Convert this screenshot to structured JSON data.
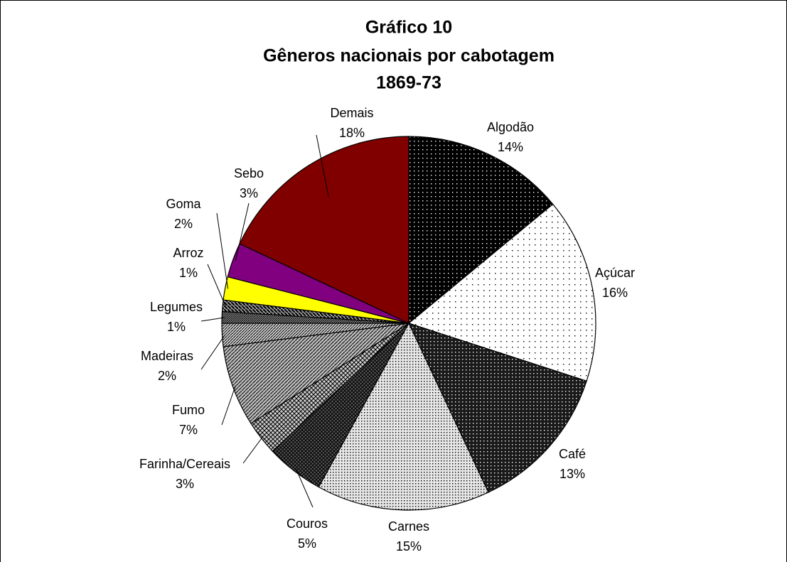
{
  "chart_data": {
    "type": "pie",
    "title": [
      "Gráfico 10",
      "Gêneros nacionais  por cabotagem",
      "1869-73"
    ],
    "categories": [
      "Algodão",
      "Açúcar",
      "Café",
      "Carnes",
      "Couros",
      "Farinha/Cereais",
      "Fumo",
      "Madeiras",
      "Legumes",
      "Arroz",
      "Goma",
      "Sebo",
      "Demais"
    ],
    "values": [
      14,
      16,
      13,
      15,
      5,
      3,
      7,
      2,
      1,
      1,
      2,
      3,
      18
    ],
    "value_labels": [
      "14%",
      "16%",
      "13%",
      "15%",
      "5%",
      "3%",
      "7%",
      "2%",
      "1%",
      "1%",
      "2%",
      "3%",
      "18%"
    ],
    "colors": [
      "#000000",
      "#ffffff",
      "#1a1a1a",
      "#e6e6e6",
      "#555555",
      "#cccccc",
      "#bbbbbb",
      "#d0d0d0",
      "#888888",
      "#999999",
      "#ffff00",
      "#800080",
      "#800000"
    ]
  }
}
